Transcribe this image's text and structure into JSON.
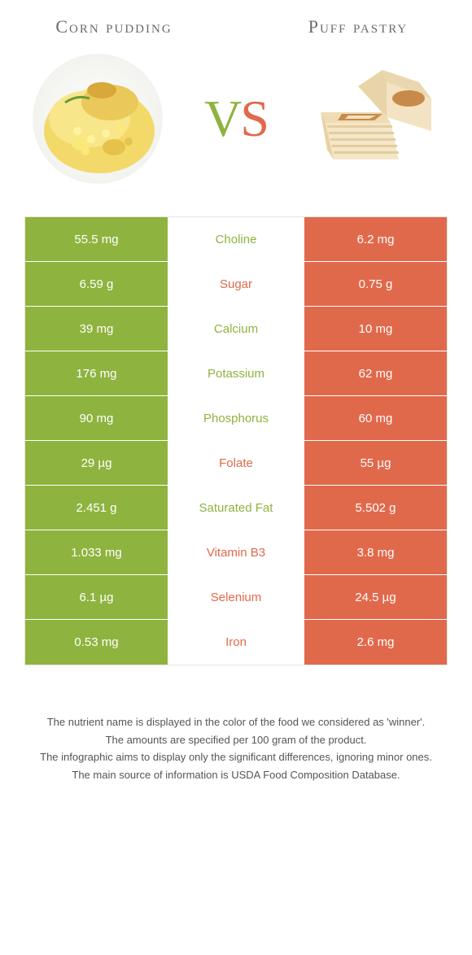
{
  "colors": {
    "left": "#8fb33f",
    "right": "#e1694b",
    "bg": "#ffffff",
    "title": "#6a6a6a",
    "border": "#e6e6e6"
  },
  "foods": {
    "left_name": "Corn pudding",
    "right_name": "Puff pastry"
  },
  "vs": {
    "v": "V",
    "s": "S"
  },
  "rows": [
    {
      "label": "Choline",
      "left": "55.5 mg",
      "right": "6.2 mg",
      "winner": "left"
    },
    {
      "label": "Sugar",
      "left": "6.59 g",
      "right": "0.75 g",
      "winner": "right"
    },
    {
      "label": "Calcium",
      "left": "39 mg",
      "right": "10 mg",
      "winner": "left"
    },
    {
      "label": "Potassium",
      "left": "176 mg",
      "right": "62 mg",
      "winner": "left"
    },
    {
      "label": "Phosphorus",
      "left": "90 mg",
      "right": "60 mg",
      "winner": "left"
    },
    {
      "label": "Folate",
      "left": "29 µg",
      "right": "55 µg",
      "winner": "right"
    },
    {
      "label": "Saturated Fat",
      "left": "2.451 g",
      "right": "5.502 g",
      "winner": "left"
    },
    {
      "label": "Vitamin B3",
      "left": "1.033 mg",
      "right": "3.8 mg",
      "winner": "right"
    },
    {
      "label": "Selenium",
      "left": "6.1 µg",
      "right": "24.5 µg",
      "winner": "right"
    },
    {
      "label": "Iron",
      "left": "0.53 mg",
      "right": "2.6 mg",
      "winner": "right"
    }
  ],
  "footnotes": [
    "The nutrient name is displayed in the color of the food we considered as 'winner'.",
    "The amounts are specified per 100 gram of the product.",
    "The infographic aims to display only the significant differences, ignoring minor ones.",
    "The main source of information is USDA Food Composition Database."
  ]
}
